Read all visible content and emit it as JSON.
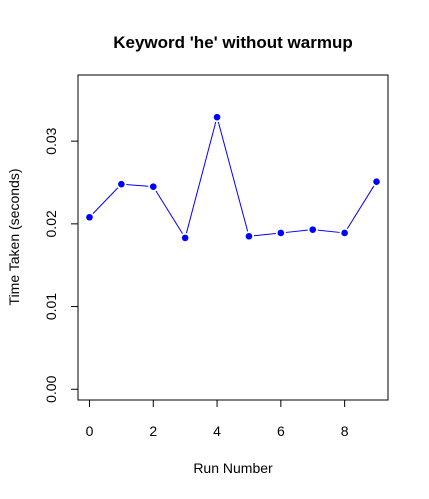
{
  "chart_data": {
    "type": "line",
    "title": "Keyword 'he' without warmup",
    "xlabel": "Run Number",
    "ylabel": "Time Taken (seconds)",
    "x": [
      0,
      1,
      2,
      3,
      4,
      5,
      6,
      7,
      8,
      9
    ],
    "y": [
      0.0208,
      0.0248,
      0.0245,
      0.0183,
      0.0329,
      0.0185,
      0.0189,
      0.0193,
      0.0189,
      0.0251
    ],
    "xticks": [
      0,
      2,
      4,
      6,
      8
    ],
    "xtick_labels": [
      "0",
      "2",
      "4",
      "6",
      "8"
    ],
    "yticks": [
      0.0,
      0.01,
      0.02,
      0.03
    ],
    "ytick_labels": [
      "0.00",
      "0.01",
      "0.02",
      "0.03"
    ],
    "xlim": [
      -0.36,
      9.36
    ],
    "ylim": [
      -0.0013,
      0.038
    ],
    "line_color": "#0000ff",
    "point_color": "#0000ff",
    "grid": false
  }
}
